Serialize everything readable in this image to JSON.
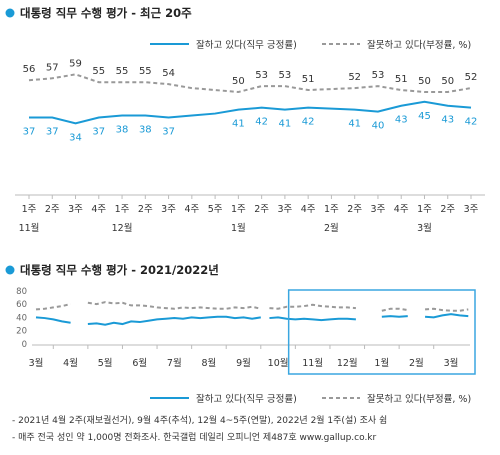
{
  "colors": {
    "positive": "#1a9ad6",
    "negative": "#999999",
    "accent": "#1a9ad6",
    "highlight_box": "#3aa6e0"
  },
  "chart1": {
    "title": "대통령 직무 수행 평가 - 최근 20주",
    "legend_positive": "잘하고 있다(직무 긍정률)",
    "legend_negative": "잘못하고 있다(부정률, %)",
    "month_labels": [
      "11월",
      "12월",
      "1월",
      "2월",
      "3월"
    ]
  },
  "chart2": {
    "title": "대통령 직무 수행 평가 - 2021/2022년",
    "legend_positive": "잘하고 있다(직무 긍정률)",
    "legend_negative": "잘못하고 있다(부정률, %)",
    "y_ticks": [
      "80",
      "60",
      "40",
      "20",
      "0"
    ],
    "month_labels": [
      "3월",
      "4월",
      "5월",
      "6월",
      "7월",
      "8월",
      "9월",
      "10월",
      "11월",
      "12월",
      "1월",
      "2월",
      "3월"
    ]
  },
  "notes": [
    "- 2021년 4월 2주(재보궐선거), 9월 4주(추석), 12월 4~5주(연말), 2022년 2월 1주(설) 조사 쉼",
    "- 매주 전국 성인 약 1,000명 전화조사. 한국갤럽 데일리 오피니언 제487호 www.gallup.co.kr"
  ],
  "chart_data": [
    {
      "type": "line",
      "title": "대통령 직무 수행 평가 - 최근 20주",
      "categories": [
        "1주",
        "2주",
        "3주",
        "4주",
        "1주",
        "2주",
        "3주",
        "4주",
        "5주",
        "1주",
        "2주",
        "3주",
        "4주",
        "1주",
        "2주",
        "3주",
        "4주",
        "1주",
        "2주",
        "3주"
      ],
      "month_groups": [
        {
          "label": "11월",
          "start_index": 0
        },
        {
          "label": "12월",
          "start_index": 4
        },
        {
          "label": "1월",
          "start_index": 9
        },
        {
          "label": "2월",
          "start_index": 13
        },
        {
          "label": "3월",
          "start_index": 17
        }
      ],
      "series": [
        {
          "name": "잘하고 있다(직무 긍정률)",
          "values": [
            37,
            37,
            34,
            37,
            38,
            38,
            37,
            null,
            null,
            41,
            42,
            41,
            42,
            null,
            41,
            40,
            43,
            45,
            43,
            42
          ],
          "line_values": [
            37,
            37,
            34,
            37,
            38,
            38,
            37,
            38,
            39,
            41,
            42,
            41,
            42,
            41.5,
            41,
            40,
            43,
            45,
            43,
            42
          ]
        },
        {
          "name": "잘못하고 있다(부정률, %)",
          "values": [
            56,
            57,
            59,
            55,
            55,
            55,
            54,
            null,
            null,
            50,
            53,
            53,
            51,
            null,
            52,
            53,
            51,
            50,
            50,
            52
          ],
          "line_values": [
            56,
            57,
            59,
            55,
            55,
            55,
            54,
            52,
            51,
            50,
            53,
            53,
            51,
            51.5,
            52,
            53,
            51,
            50,
            50,
            52
          ]
        }
      ],
      "ylim": [
        0,
        100
      ],
      "grid": false,
      "legend": "top"
    },
    {
      "type": "line",
      "title": "대통령 직무 수행 평가 - 2021/2022년",
      "x_months": [
        "3월",
        "4월",
        "5월",
        "6월",
        "7월",
        "8월",
        "9월",
        "10월",
        "11월",
        "12월",
        "1월",
        "2월",
        "3월"
      ],
      "yticks": [
        0,
        20,
        40,
        60,
        80
      ],
      "ylim": [
        0,
        80
      ],
      "series": [
        {
          "name": "잘하고 있다(직무 긍정률)",
          "segments": [
            [
              [
                0,
                40
              ],
              [
                0.25,
                39
              ],
              [
                0.5,
                37
              ],
              [
                0.75,
                34
              ],
              [
                1.0,
                32
              ]
            ],
            [
              [
                1.5,
                30
              ],
              [
                1.75,
                31
              ],
              [
                2.0,
                29
              ],
              [
                2.25,
                32
              ],
              [
                2.5,
                30
              ],
              [
                2.75,
                34
              ],
              [
                3.0,
                33
              ],
              [
                3.25,
                35
              ],
              [
                3.5,
                37
              ],
              [
                3.75,
                38
              ],
              [
                4.0,
                39
              ],
              [
                4.25,
                38
              ],
              [
                4.5,
                40
              ],
              [
                4.75,
                39
              ],
              [
                5.0,
                40
              ],
              [
                5.25,
                41
              ],
              [
                5.5,
                41
              ],
              [
                5.75,
                39
              ],
              [
                6.0,
                40
              ],
              [
                6.25,
                38
              ],
              [
                6.5,
                40
              ]
            ],
            [
              [
                6.75,
                39
              ],
              [
                7.0,
                40
              ],
              [
                7.25,
                38
              ],
              [
                7.5,
                37
              ],
              [
                7.75,
                38
              ],
              [
                8.0,
                37
              ],
              [
                8.25,
                36
              ],
              [
                8.5,
                37
              ],
              [
                8.75,
                38
              ],
              [
                9.0,
                38
              ],
              [
                9.25,
                37
              ]
            ],
            [
              [
                10.0,
                41
              ],
              [
                10.25,
                42
              ],
              [
                10.5,
                41
              ],
              [
                10.75,
                42
              ]
            ],
            [
              [
                11.25,
                41
              ],
              [
                11.5,
                40
              ],
              [
                11.75,
                43
              ],
              [
                12.0,
                45
              ],
              [
                12.25,
                43
              ],
              [
                12.5,
                42
              ]
            ]
          ]
        },
        {
          "name": "잘못하고 있다(부정률, %)",
          "segments": [
            [
              [
                0,
                52
              ],
              [
                0.25,
                53
              ],
              [
                0.5,
                55
              ],
              [
                0.75,
                57
              ],
              [
                1.0,
                60
              ]
            ],
            [
              [
                1.5,
                62
              ],
              [
                1.75,
                60
              ],
              [
                2.0,
                63
              ],
              [
                2.25,
                61
              ],
              [
                2.5,
                62
              ],
              [
                2.75,
                58
              ],
              [
                3.0,
                58
              ],
              [
                3.25,
                57
              ],
              [
                3.5,
                55
              ],
              [
                3.75,
                54
              ],
              [
                4.0,
                53
              ],
              [
                4.25,
                55
              ],
              [
                4.5,
                54
              ],
              [
                4.75,
                55
              ],
              [
                5.0,
                54
              ],
              [
                5.25,
                53
              ],
              [
                5.5,
                53
              ],
              [
                5.75,
                55
              ],
              [
                6.0,
                54
              ],
              [
                6.25,
                56
              ],
              [
                6.5,
                53
              ]
            ],
            [
              [
                6.75,
                54
              ],
              [
                7.0,
                53
              ],
              [
                7.25,
                56
              ],
              [
                7.5,
                56
              ],
              [
                7.75,
                57
              ],
              [
                8.0,
                59
              ],
              [
                8.25,
                57
              ],
              [
                8.5,
                56
              ],
              [
                8.75,
                55
              ],
              [
                9.0,
                55
              ],
              [
                9.25,
                54
              ]
            ],
            [
              [
                10.0,
                50
              ],
              [
                10.25,
                53
              ],
              [
                10.5,
                53
              ],
              [
                10.75,
                51
              ]
            ],
            [
              [
                11.25,
                52
              ],
              [
                11.5,
                53
              ],
              [
                11.75,
                51
              ],
              [
                12.0,
                50
              ],
              [
                12.25,
                50
              ],
              [
                12.5,
                52
              ]
            ]
          ]
        }
      ],
      "highlight_range": [
        "11월",
        "3월"
      ],
      "grid": false,
      "legend": "bottom"
    }
  ]
}
